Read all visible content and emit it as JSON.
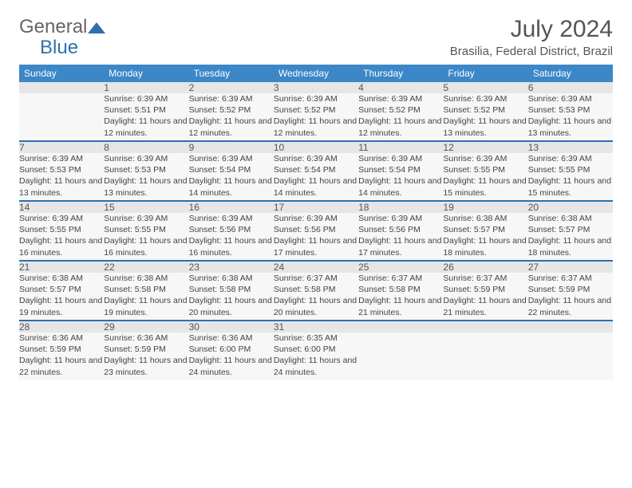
{
  "brand": {
    "part1": "General",
    "part2": "Blue"
  },
  "title": "July 2024",
  "location": "Brasilia, Federal District, Brazil",
  "colors": {
    "header_bg": "#3b87c8",
    "header_text": "#ffffff",
    "accent": "#2f6fae",
    "daynum_bg": "#e6e6e6",
    "cell_bg": "#f7f7f7",
    "text": "#444444"
  },
  "weekdays": [
    "Sunday",
    "Monday",
    "Tuesday",
    "Wednesday",
    "Thursday",
    "Friday",
    "Saturday"
  ],
  "weeks": [
    {
      "nums": [
        "",
        "1",
        "2",
        "3",
        "4",
        "5",
        "6"
      ],
      "info": [
        "",
        "Sunrise: 6:39 AM\nSunset: 5:51 PM\nDaylight: 11 hours and 12 minutes.",
        "Sunrise: 6:39 AM\nSunset: 5:52 PM\nDaylight: 11 hours and 12 minutes.",
        "Sunrise: 6:39 AM\nSunset: 5:52 PM\nDaylight: 11 hours and 12 minutes.",
        "Sunrise: 6:39 AM\nSunset: 5:52 PM\nDaylight: 11 hours and 12 minutes.",
        "Sunrise: 6:39 AM\nSunset: 5:52 PM\nDaylight: 11 hours and 13 minutes.",
        "Sunrise: 6:39 AM\nSunset: 5:53 PM\nDaylight: 11 hours and 13 minutes."
      ]
    },
    {
      "nums": [
        "7",
        "8",
        "9",
        "10",
        "11",
        "12",
        "13"
      ],
      "info": [
        "Sunrise: 6:39 AM\nSunset: 5:53 PM\nDaylight: 11 hours and 13 minutes.",
        "Sunrise: 6:39 AM\nSunset: 5:53 PM\nDaylight: 11 hours and 13 minutes.",
        "Sunrise: 6:39 AM\nSunset: 5:54 PM\nDaylight: 11 hours and 14 minutes.",
        "Sunrise: 6:39 AM\nSunset: 5:54 PM\nDaylight: 11 hours and 14 minutes.",
        "Sunrise: 6:39 AM\nSunset: 5:54 PM\nDaylight: 11 hours and 14 minutes.",
        "Sunrise: 6:39 AM\nSunset: 5:55 PM\nDaylight: 11 hours and 15 minutes.",
        "Sunrise: 6:39 AM\nSunset: 5:55 PM\nDaylight: 11 hours and 15 minutes."
      ]
    },
    {
      "nums": [
        "14",
        "15",
        "16",
        "17",
        "18",
        "19",
        "20"
      ],
      "info": [
        "Sunrise: 6:39 AM\nSunset: 5:55 PM\nDaylight: 11 hours and 16 minutes.",
        "Sunrise: 6:39 AM\nSunset: 5:55 PM\nDaylight: 11 hours and 16 minutes.",
        "Sunrise: 6:39 AM\nSunset: 5:56 PM\nDaylight: 11 hours and 16 minutes.",
        "Sunrise: 6:39 AM\nSunset: 5:56 PM\nDaylight: 11 hours and 17 minutes.",
        "Sunrise: 6:39 AM\nSunset: 5:56 PM\nDaylight: 11 hours and 17 minutes.",
        "Sunrise: 6:38 AM\nSunset: 5:57 PM\nDaylight: 11 hours and 18 minutes.",
        "Sunrise: 6:38 AM\nSunset: 5:57 PM\nDaylight: 11 hours and 18 minutes."
      ]
    },
    {
      "nums": [
        "21",
        "22",
        "23",
        "24",
        "25",
        "26",
        "27"
      ],
      "info": [
        "Sunrise: 6:38 AM\nSunset: 5:57 PM\nDaylight: 11 hours and 19 minutes.",
        "Sunrise: 6:38 AM\nSunset: 5:58 PM\nDaylight: 11 hours and 19 minutes.",
        "Sunrise: 6:38 AM\nSunset: 5:58 PM\nDaylight: 11 hours and 20 minutes.",
        "Sunrise: 6:37 AM\nSunset: 5:58 PM\nDaylight: 11 hours and 20 minutes.",
        "Sunrise: 6:37 AM\nSunset: 5:58 PM\nDaylight: 11 hours and 21 minutes.",
        "Sunrise: 6:37 AM\nSunset: 5:59 PM\nDaylight: 11 hours and 21 minutes.",
        "Sunrise: 6:37 AM\nSunset: 5:59 PM\nDaylight: 11 hours and 22 minutes."
      ]
    },
    {
      "nums": [
        "28",
        "29",
        "30",
        "31",
        "",
        "",
        ""
      ],
      "info": [
        "Sunrise: 6:36 AM\nSunset: 5:59 PM\nDaylight: 11 hours and 22 minutes.",
        "Sunrise: 6:36 AM\nSunset: 5:59 PM\nDaylight: 11 hours and 23 minutes.",
        "Sunrise: 6:36 AM\nSunset: 6:00 PM\nDaylight: 11 hours and 24 minutes.",
        "Sunrise: 6:35 AM\nSunset: 6:00 PM\nDaylight: 11 hours and 24 minutes.",
        "",
        "",
        ""
      ]
    }
  ]
}
